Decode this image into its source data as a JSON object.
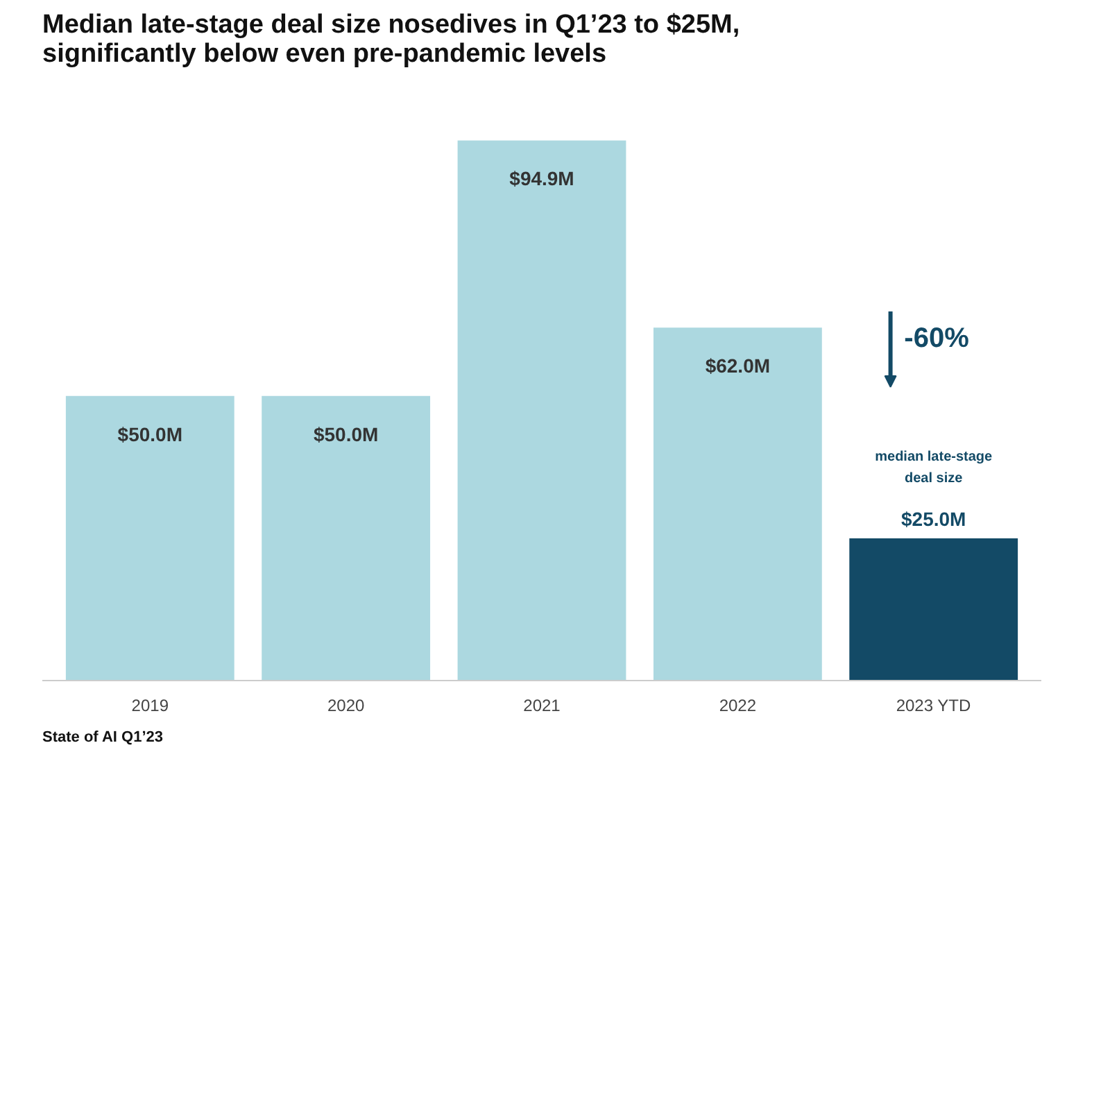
{
  "chart_data": {
    "type": "bar",
    "title": "Median late-stage deal size nosedives in Q1’23 to $25M, significantly below even pre-pandemic levels",
    "categories": [
      "2019",
      "2020",
      "2021",
      "2022",
      "2023 YTD"
    ],
    "values": [
      50.0,
      50.0,
      94.9,
      62.0,
      25.0
    ],
    "value_labels": [
      "$50.0M",
      "$50.0M",
      "$94.9M",
      "$62.0M",
      "$25.0M"
    ],
    "colors": [
      "#acd8e0",
      "#acd8e0",
      "#acd8e0",
      "#acd8e0",
      "#134a66"
    ],
    "annotations": [
      "-60%",
      "median late-stage deal size",
      "State of AI Q1’23"
    ],
    "grid": false
  }
}
